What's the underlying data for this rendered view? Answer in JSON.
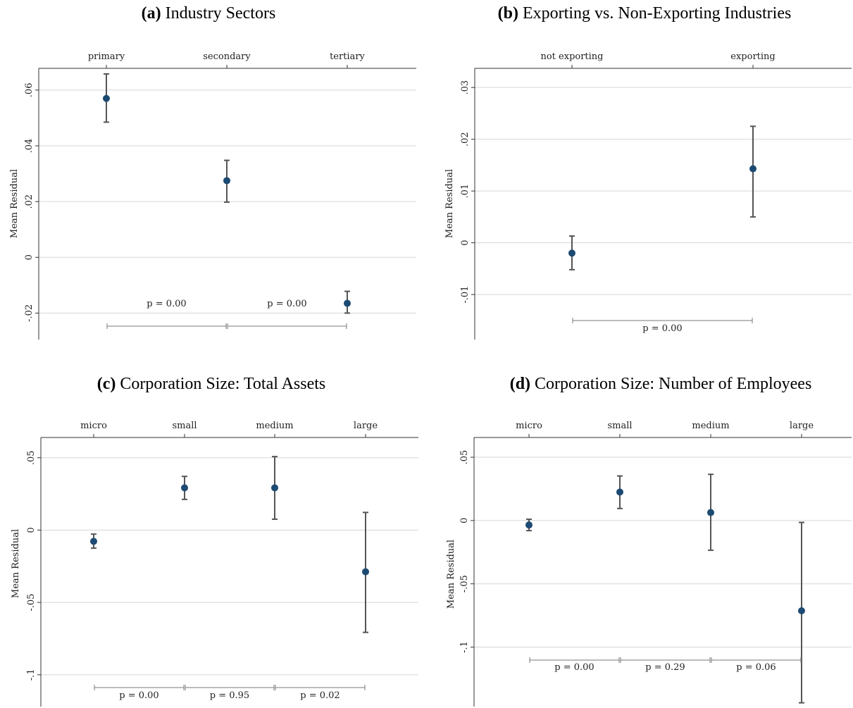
{
  "chart_data": [
    {
      "type": "scatter",
      "label": "(a)",
      "title": "Industry Sectors",
      "ylabel": "Mean Residual",
      "categories": [
        "primary",
        "secondary",
        "tertiary"
      ],
      "values": [
        0.057,
        0.0275,
        -0.0165
      ],
      "ci_low": [
        0.0485,
        0.0198,
        -0.02
      ],
      "ci_high": [
        0.0658,
        0.0348,
        -0.0122
      ],
      "ylim": [
        -0.0295,
        0.0678
      ],
      "yticks": [
        -0.02,
        0,
        0.02,
        0.04,
        0.06
      ],
      "ytick_labels": [
        "-.02",
        "0",
        ".02",
        ".04",
        ".06"
      ],
      "grid": true,
      "comparisons": [
        {
          "from": 0,
          "to": 1,
          "label": "p = 0.00"
        },
        {
          "from": 1,
          "to": 2,
          "label": "p = 0.00"
        }
      ]
    },
    {
      "type": "scatter",
      "label": "(b)",
      "title": "Exporting vs. Non-Exporting Industries",
      "ylabel": "Mean Residual",
      "categories": [
        "not exporting",
        "exporting"
      ],
      "values": [
        -0.002,
        0.0143
      ],
      "ci_low": [
        -0.0052,
        0.005
      ],
      "ci_high": [
        0.0013,
        0.0225
      ],
      "ylim": [
        -0.0187,
        0.0337
      ],
      "yticks": [
        -0.01,
        0,
        0.01,
        0.02,
        0.03
      ],
      "ytick_labels": [
        "-.01",
        "0",
        ".01",
        ".02",
        ".03"
      ],
      "grid": true,
      "comparisons": [
        {
          "from": 0,
          "to": 1,
          "label": "p = 0.00"
        }
      ]
    },
    {
      "type": "scatter",
      "label": "(c)",
      "title": "Corporation Size: Total Assets",
      "ylabel": "Mean Residual",
      "categories": [
        "micro",
        "small",
        "medium",
        "large"
      ],
      "values": [
        -0.0078,
        0.0292,
        0.0292,
        -0.0288
      ],
      "ci_low": [
        -0.0125,
        0.0212,
        0.0075,
        -0.0707
      ],
      "ci_high": [
        -0.0028,
        0.0371,
        0.0508,
        0.0122
      ],
      "ylim": [
        -0.122,
        0.064
      ],
      "yticks": [
        -0.1,
        -0.05,
        0,
        0.05
      ],
      "ytick_labels": [
        "-.1",
        "-.05",
        "0",
        ".05"
      ],
      "grid": true,
      "comparisons": [
        {
          "from": 0,
          "to": 1,
          "label": "p = 0.00"
        },
        {
          "from": 1,
          "to": 2,
          "label": "p = 0.95"
        },
        {
          "from": 2,
          "to": 3,
          "label": "p = 0.02"
        }
      ]
    },
    {
      "type": "scatter",
      "label": "(d)",
      "title": "Corporation Size: Number of Employees",
      "ylabel": "Mean Residual",
      "categories": [
        "micro",
        "small",
        "medium",
        "large"
      ],
      "values": [
        -0.0035,
        0.0225,
        0.0063,
        -0.0713
      ],
      "ci_low": [
        -0.008,
        0.0095,
        -0.0235,
        -0.144
      ],
      "ci_high": [
        0.001,
        0.0352,
        0.0365,
        -0.0015
      ],
      "ylim": [
        -0.147,
        0.0656
      ],
      "yticks": [
        -0.1,
        -0.05,
        0,
        0.05
      ],
      "ytick_labels": [
        "-.1",
        "-.05",
        "0",
        ".05"
      ],
      "grid": true,
      "comparisons": [
        {
          "from": 0,
          "to": 1,
          "label": "p = 0.00"
        },
        {
          "from": 1,
          "to": 2,
          "label": "p = 0.29"
        },
        {
          "from": 2,
          "to": 3,
          "label": "p = 0.06"
        }
      ]
    }
  ]
}
